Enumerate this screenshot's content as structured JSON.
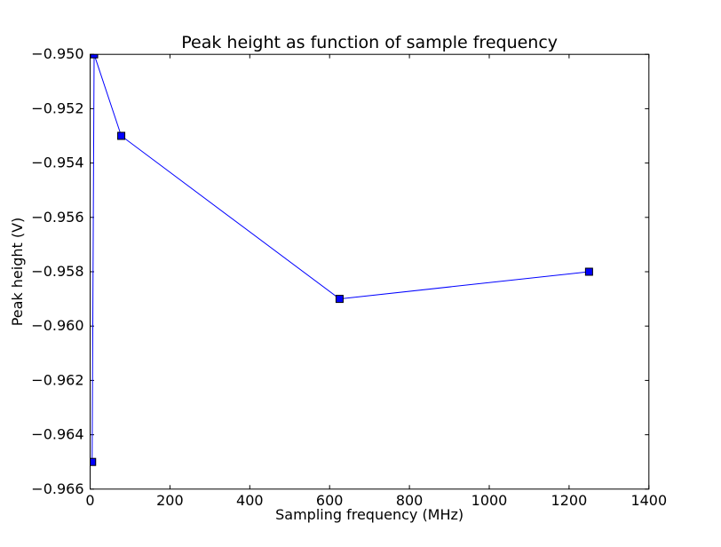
{
  "chart_data": {
    "type": "line",
    "title": "Peak height as function of sample frequency",
    "xlabel": "Sampling frequency (MHz)",
    "ylabel": "Peak height (V)",
    "xlim": [
      0,
      1400
    ],
    "ylim": [
      -0.966,
      -0.95
    ],
    "xticks": [
      0,
      200,
      400,
      600,
      800,
      1000,
      1200,
      1400
    ],
    "yticks": [
      -0.966,
      -0.964,
      -0.962,
      -0.96,
      -0.958,
      -0.956,
      -0.954,
      -0.952,
      -0.95
    ],
    "grid": false,
    "legend": null,
    "background_color": "#ffffff",
    "axes_color": "#000000",
    "series": [
      {
        "name": "peak height",
        "x": [
          5,
          10,
          78,
          625,
          1250
        ],
        "y": [
          -0.965,
          -0.95,
          -0.953,
          -0.959,
          -0.958
        ],
        "line_color": "#0000ff",
        "line_width": 1,
        "marker": "square",
        "marker_size": 8,
        "marker_color": "#0000ff",
        "marker_edge_color": "#000000"
      }
    ]
  }
}
